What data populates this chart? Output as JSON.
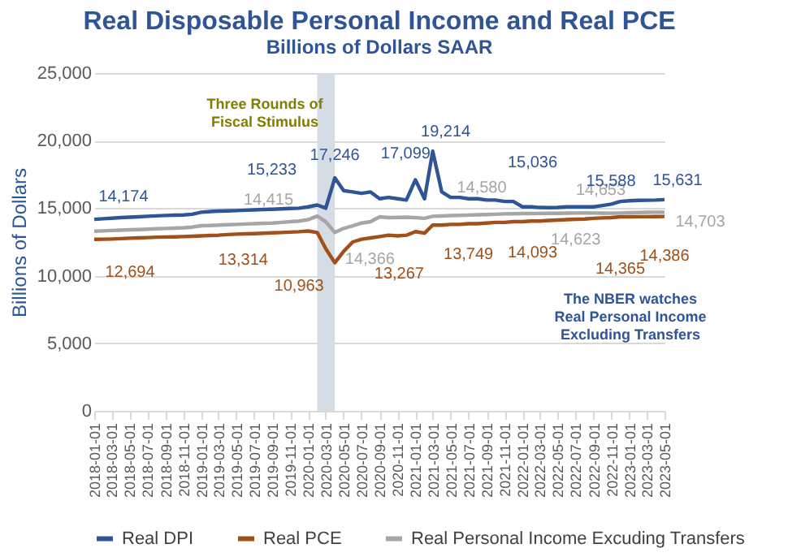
{
  "chart_data": {
    "type": "line",
    "title": "Real Disposable Personal Income and Real PCE",
    "subtitle": "Billions of Dollars SAAR",
    "ylabel": "Billions of Dollars",
    "x": [
      "2018-01-01",
      "2018-02-01",
      "2018-03-01",
      "2018-04-01",
      "2018-05-01",
      "2018-06-01",
      "2018-07-01",
      "2018-08-01",
      "2018-09-01",
      "2018-10-01",
      "2018-11-01",
      "2018-12-01",
      "2019-01-01",
      "2019-02-01",
      "2019-03-01",
      "2019-04-01",
      "2019-05-01",
      "2019-06-01",
      "2019-07-01",
      "2019-08-01",
      "2019-09-01",
      "2019-10-01",
      "2019-11-01",
      "2019-12-01",
      "2020-01-01",
      "2020-02-01",
      "2020-03-01",
      "2020-04-01",
      "2020-05-01",
      "2020-06-01",
      "2020-07-01",
      "2020-08-01",
      "2020-09-01",
      "2020-10-01",
      "2020-11-01",
      "2020-12-01",
      "2021-01-01",
      "2021-02-01",
      "2021-03-01",
      "2021-04-01",
      "2021-05-01",
      "2021-06-01",
      "2021-07-01",
      "2021-08-01",
      "2021-09-01",
      "2021-10-01",
      "2021-11-01",
      "2021-12-01",
      "2022-01-01",
      "2022-02-01",
      "2022-03-01",
      "2022-04-01",
      "2022-05-01",
      "2022-06-01",
      "2022-07-01",
      "2022-08-01",
      "2022-09-01",
      "2022-10-01",
      "2022-11-01",
      "2022-12-01",
      "2023-01-01",
      "2023-02-01",
      "2023-03-01",
      "2023-04-01",
      "2023-05-01"
    ],
    "series": [
      {
        "name": "Real DPI",
        "color": "#2f5597",
        "values": [
          14174,
          14220,
          14260,
          14300,
          14330,
          14360,
          14400,
          14430,
          14460,
          14480,
          14500,
          14550,
          14700,
          14750,
          14780,
          14800,
          14820,
          14850,
          14870,
          14900,
          14920,
          14950,
          14980,
          15000,
          15100,
          15233,
          15000,
          17246,
          16300,
          16200,
          16100,
          16200,
          15700,
          15800,
          15700,
          15600,
          17099,
          15700,
          19214,
          16200,
          15800,
          15800,
          15700,
          15700,
          15600,
          15600,
          15500,
          15500,
          15100,
          15100,
          15050,
          15036,
          15050,
          15100,
          15100,
          15100,
          15100,
          15200,
          15300,
          15500,
          15550,
          15580,
          15588,
          15600,
          15631
        ]
      },
      {
        "name": "Real PCE",
        "color": "#a0501a",
        "values": [
          12694,
          12700,
          12720,
          12750,
          12780,
          12800,
          12820,
          12850,
          12870,
          12880,
          12900,
          12920,
          12950,
          12980,
          13000,
          13050,
          13080,
          13100,
          13120,
          13150,
          13180,
          13200,
          13230,
          13260,
          13314,
          13200,
          12000,
          10963,
          11800,
          12500,
          12700,
          12800,
          12900,
          13000,
          12950,
          13000,
          13267,
          13150,
          13749,
          13750,
          13800,
          13800,
          13850,
          13850,
          13900,
          13950,
          13950,
          14000,
          14000,
          14050,
          14050,
          14093,
          14120,
          14150,
          14180,
          14200,
          14250,
          14280,
          14300,
          14365,
          14360,
          14370,
          14370,
          14380,
          14386
        ]
      },
      {
        "name": "Real Personal Income Excuding Transfers",
        "color": "#a6a6a6",
        "values": [
          13300,
          13320,
          13350,
          13370,
          13400,
          13420,
          13450,
          13480,
          13500,
          13520,
          13550,
          13600,
          13700,
          13720,
          13750,
          13780,
          13800,
          13830,
          13850,
          13880,
          13900,
          13950,
          14000,
          14050,
          14150,
          14415,
          14000,
          13200,
          13500,
          13700,
          13900,
          14000,
          14366,
          14300,
          14320,
          14330,
          14300,
          14250,
          14400,
          14420,
          14450,
          14470,
          14490,
          14510,
          14530,
          14550,
          14580,
          14590,
          14600,
          14600,
          14610,
          14620,
          14620,
          14630,
          14640,
          14653,
          14640,
          14630,
          14623,
          14640,
          14660,
          14680,
          14690,
          14700,
          14703
        ]
      }
    ],
    "xlim": [
      "2018-01-01",
      "2023-05-01"
    ],
    "xticks": [
      "2018-01-01",
      "2018-03-01",
      "2018-05-01",
      "2018-07-01",
      "2018-09-01",
      "2018-11-01",
      "2019-01-01",
      "2019-03-01",
      "2019-05-01",
      "2019-07-01",
      "2019-09-01",
      "2019-11-01",
      "2020-01-01",
      "2020-03-01",
      "2020-05-01",
      "2020-07-01",
      "2020-09-01",
      "2020-11-01",
      "2021-01-01",
      "2021-03-01",
      "2021-05-01",
      "2021-07-01",
      "2021-09-01",
      "2021-11-01",
      "2022-01-01",
      "2022-03-01",
      "2022-05-01",
      "2022-07-01",
      "2022-09-01",
      "2022-11-01",
      "2023-01-01",
      "2023-03-01",
      "2023-05-01"
    ],
    "ylim": [
      0,
      25000
    ],
    "yticks": [
      0,
      {
        "value": 5000,
        "label": "5,000"
      },
      {
        "value": 10000,
        "label": "10,000"
      },
      {
        "value": 15000,
        "label": "15,000"
      },
      {
        "value": 20000,
        "label": "20,000"
      },
      {
        "value": 25000,
        "label": "25,000"
      }
    ],
    "grid": "y",
    "legend": "bottom",
    "marker": "none",
    "line_style": "solid",
    "bands": [
      {
        "axis": "x",
        "from": "2020-02-01",
        "to": "2020-04-01",
        "color": "#d6dce4"
      }
    ],
    "annotations": [
      {
        "text": "14,174",
        "x": "2018-01-01",
        "y": 14174
      },
      {
        "text": "12,694",
        "x": "2018-01-01",
        "y": 12694
      },
      {
        "text": "14,415",
        "x": "2020-02-01",
        "y": 14415
      },
      {
        "text": "15,233",
        "x": "2020-02-01",
        "y": 15233
      },
      {
        "text": "13,314",
        "x": "2020-01-01",
        "y": 13314
      },
      {
        "text": "10,963",
        "x": "2020-04-01",
        "y": 10963
      },
      {
        "text": "17,246",
        "x": "2020-04-01",
        "y": 17246
      },
      {
        "text": "14,366",
        "x": "2020-09-01",
        "y": 14366
      },
      {
        "text": "13,267",
        "x": "2021-01-01",
        "y": 13267
      },
      {
        "text": "17,099",
        "x": "2021-01-01",
        "y": 17099
      },
      {
        "text": "19,214",
        "x": "2021-03-01",
        "y": 19214
      },
      {
        "text": "13,749",
        "x": "2021-03-01",
        "y": 13749
      },
      {
        "text": "14,580",
        "x": "2021-11-01",
        "y": 14580
      },
      {
        "text": "15,036",
        "x": "2022-04-01",
        "y": 15036
      },
      {
        "text": "14,093",
        "x": "2022-04-01",
        "y": 14093
      },
      {
        "text": "14,653",
        "x": "2022-08-01",
        "y": 14653
      },
      {
        "text": "14,623",
        "x": "2022-11-01",
        "y": 14623
      },
      {
        "text": "14,365",
        "x": "2022-12-01",
        "y": 14365
      },
      {
        "text": "15,588",
        "x": "2023-03-01",
        "y": 15588
      },
      {
        "text": "15,631",
        "x": "2023-05-01",
        "y": 15631
      },
      {
        "text": "14,703",
        "x": "2023-05-01",
        "y": 14703
      },
      {
        "text": "14,386",
        "x": "2023-05-01",
        "y": 14386
      },
      "Three Rounds of\nFiscal Stimulus",
      "The NBER watches\nReal Personal Income\nExcluding Transfers"
    ]
  }
}
